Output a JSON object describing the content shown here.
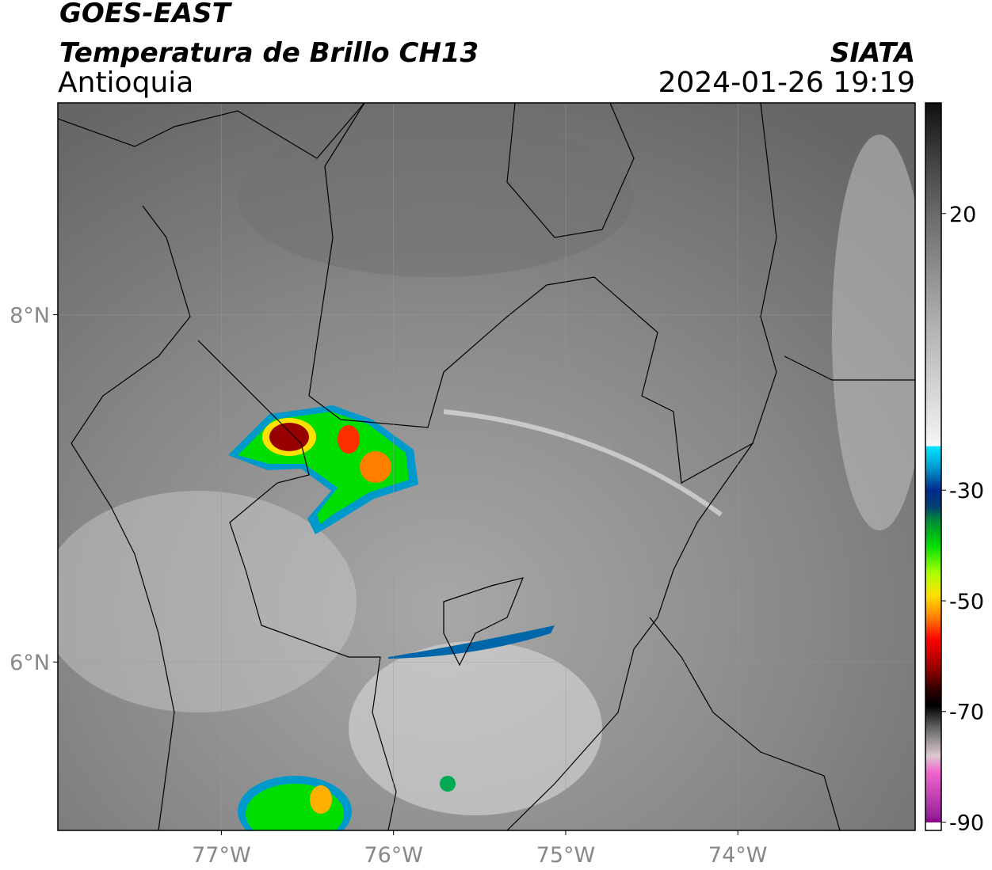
{
  "header": {
    "title": "GOES-EAST",
    "subtitle": "Temperatura de Brillo CH13",
    "region": "Antioquia",
    "source": "SIATA",
    "datetime": "2024-01-26 19:19"
  },
  "map": {
    "xlim": [
      -77.95,
      -72.97
    ],
    "ylim": [
      5.03,
      9.22
    ],
    "xticks": [
      {
        "value": -77,
        "label": "77°W"
      },
      {
        "value": -76,
        "label": "76°W"
      },
      {
        "value": -75,
        "label": "75°W"
      },
      {
        "value": -74,
        "label": "74°W"
      }
    ],
    "yticks": [
      {
        "value": 8,
        "label": "8°N"
      },
      {
        "value": 6,
        "label": "6°N"
      }
    ],
    "grid": true
  },
  "colorbar": {
    "lim": [
      -91.5,
      40
    ],
    "ticks": [
      20,
      -30,
      -50,
      -70,
      -90
    ],
    "colormap": [
      {
        "value": 40,
        "color": "#101010"
      },
      {
        "value": 30,
        "color": "#404040"
      },
      {
        "value": 20,
        "color": "#6a6a6a"
      },
      {
        "value": 0,
        "color": "#b0b0b0"
      },
      {
        "value": -22,
        "color": "#f5f5f5"
      },
      {
        "value": -22.1,
        "color": "#00e5ff"
      },
      {
        "value": -26,
        "color": "#0099cc"
      },
      {
        "value": -30,
        "color": "#002a8c"
      },
      {
        "value": -33,
        "color": "#004070"
      },
      {
        "value": -35,
        "color": "#008040"
      },
      {
        "value": -40,
        "color": "#00dd00"
      },
      {
        "value": -45,
        "color": "#aaff00"
      },
      {
        "value": -49,
        "color": "#ffe000"
      },
      {
        "value": -53,
        "color": "#ff8000"
      },
      {
        "value": -57,
        "color": "#ff0000"
      },
      {
        "value": -62,
        "color": "#990000"
      },
      {
        "value": -66,
        "color": "#300000"
      },
      {
        "value": -69,
        "color": "#000000"
      },
      {
        "value": -73,
        "color": "#666666"
      },
      {
        "value": -78,
        "color": "#ddc8d0"
      },
      {
        "value": -81,
        "color": "#ee66cc"
      },
      {
        "value": -89,
        "color": "#992299"
      },
      {
        "value": -90,
        "color": "#880088"
      },
      {
        "value": -90.1,
        "color": "#ffffff"
      },
      {
        "value": -91.5,
        "color": "#ffffff"
      }
    ]
  }
}
